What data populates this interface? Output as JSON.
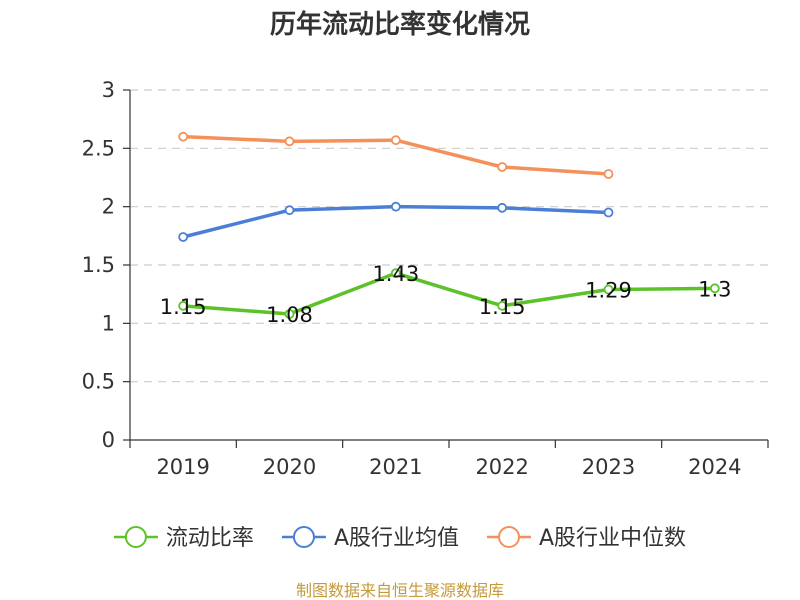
{
  "chart_data": {
    "type": "line",
    "title": "历年流动比率变化情况",
    "categories": [
      "2019",
      "2020",
      "2021",
      "2022",
      "2023",
      "2024"
    ],
    "y_ticks": [
      "0",
      "0.5",
      "1",
      "1.5",
      "2",
      "2.5",
      "3"
    ],
    "ylim": [
      0,
      3
    ],
    "grid": true,
    "legend_position": "bottom",
    "series": [
      {
        "name": "流动比率",
        "color": "#5bc22a",
        "values": [
          1.15,
          1.08,
          1.43,
          1.15,
          1.29,
          1.3
        ],
        "labels": [
          "1.15",
          "1.08",
          "1.43",
          "1.15",
          "1.29",
          "1.3"
        ]
      },
      {
        "name": "A股行业均值",
        "color": "#4b7fd6",
        "values": [
          1.74,
          1.97,
          2.0,
          1.99,
          1.95,
          null
        ]
      },
      {
        "name": "A股行业中位数",
        "color": "#f5905a",
        "values": [
          2.6,
          2.56,
          2.57,
          2.34,
          2.28,
          null
        ]
      }
    ],
    "source": "制图数据来自恒生聚源数据库"
  }
}
